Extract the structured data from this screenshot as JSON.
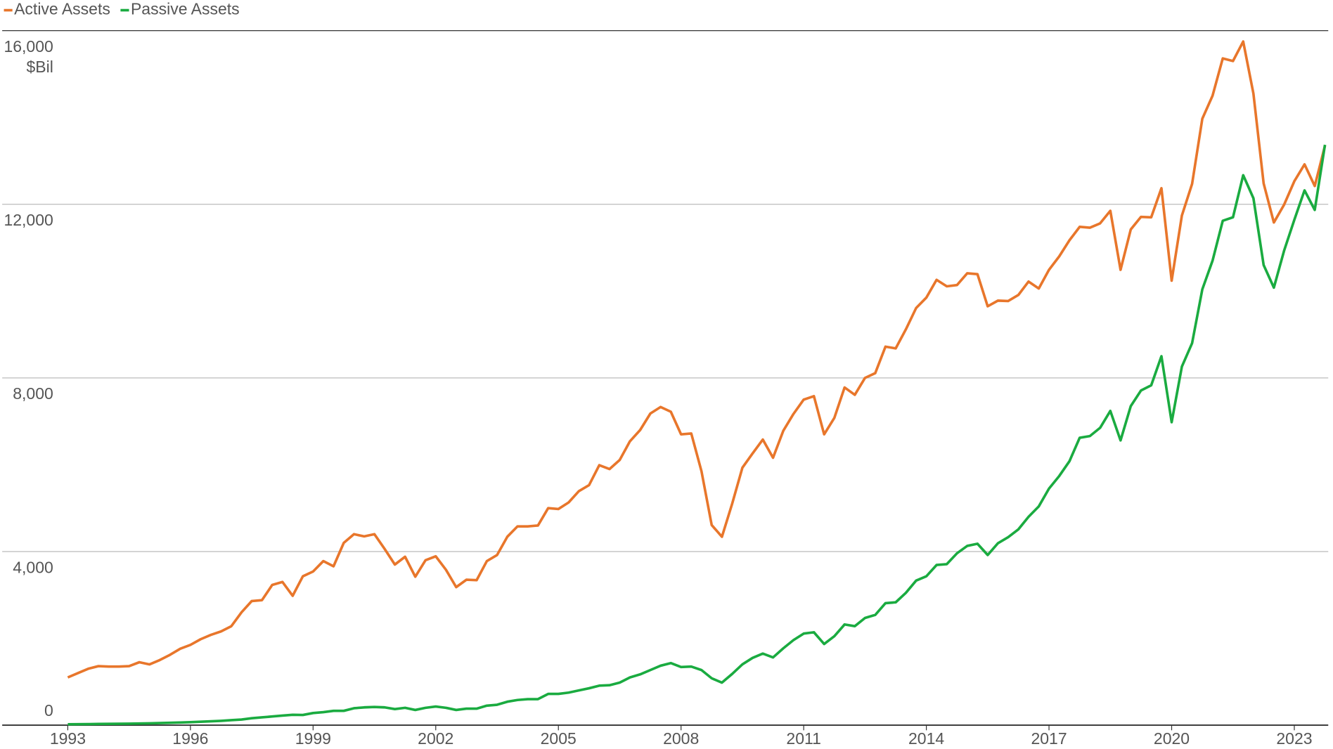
{
  "chart_data": {
    "type": "line",
    "y_unit": "$Bil",
    "x": [
      1993,
      1993.25,
      1993.5,
      1993.75,
      1994,
      1994.25,
      1994.5,
      1994.75,
      1995,
      1995.25,
      1995.5,
      1995.75,
      1996,
      1996.25,
      1996.5,
      1996.75,
      1997,
      1997.25,
      1997.5,
      1997.75,
      1998,
      1998.25,
      1998.5,
      1998.75,
      1999,
      1999.25,
      1999.5,
      1999.75,
      2000,
      2000.25,
      2000.5,
      2000.75,
      2001,
      2001.25,
      2001.5,
      2001.75,
      2002,
      2002.25,
      2002.5,
      2002.75,
      2003,
      2003.25,
      2003.5,
      2003.75,
      2004,
      2004.25,
      2004.5,
      2004.75,
      2005,
      2005.25,
      2005.5,
      2005.75,
      2006,
      2006.25,
      2006.5,
      2006.75,
      2007,
      2007.25,
      2007.5,
      2007.75,
      2008,
      2008.25,
      2008.5,
      2008.75,
      2009,
      2009.25,
      2009.5,
      2009.75,
      2010,
      2010.25,
      2010.5,
      2010.75,
      2011,
      2011.25,
      2011.5,
      2011.75,
      2012,
      2012.25,
      2012.5,
      2012.75,
      2013,
      2013.25,
      2013.5,
      2013.75,
      2014,
      2014.25,
      2014.5,
      2014.75,
      2015,
      2015.25,
      2015.5,
      2015.75,
      2016,
      2016.25,
      2016.5,
      2016.75,
      2017,
      2017.25,
      2017.5,
      2017.75,
      2018,
      2018.25,
      2018.5,
      2018.75,
      2019,
      2019.25,
      2019.5,
      2019.75,
      2020,
      2020.25,
      2020.5,
      2020.75,
      2021,
      2021.25,
      2021.5,
      2021.75,
      2022,
      2022.25,
      2022.5,
      2022.75,
      2023,
      2023.25,
      2023.5,
      2023.75
    ],
    "series": [
      {
        "name": "Active Assets",
        "color": "#e8762b",
        "values": [
          1100,
          1200,
          1300,
          1360,
          1350,
          1350,
          1360,
          1450,
          1400,
          1500,
          1620,
          1760,
          1850,
          1980,
          2080,
          2160,
          2280,
          2600,
          2860,
          2880,
          3230,
          3300,
          2980,
          3430,
          3540,
          3780,
          3660,
          4200,
          4400,
          4350,
          4400,
          4060,
          3700,
          3880,
          3420,
          3800,
          3890,
          3580,
          3180,
          3350,
          3340,
          3780,
          3920,
          4340,
          4580,
          4580,
          4600,
          5000,
          4980,
          5130,
          5390,
          5530,
          5990,
          5900,
          6110,
          6540,
          6800,
          7180,
          7330,
          7220,
          6700,
          6720,
          5850,
          4610,
          4340,
          5100,
          5930,
          6260,
          6580,
          6160,
          6780,
          7170,
          7500,
          7580,
          6700,
          7080,
          7780,
          7610,
          8000,
          8110,
          8720,
          8680,
          9120,
          9610,
          9850,
          10260,
          10110,
          10140,
          10410,
          10390,
          9650,
          9780,
          9770,
          9910,
          10220,
          10060,
          10490,
          10800,
          11170,
          11480,
          11460,
          11560,
          11850,
          10490,
          11420,
          11710,
          11700,
          12370,
          10240,
          11740,
          12470,
          13970,
          14500,
          15360,
          15300,
          15750,
          14550,
          12480,
          11580,
          11990,
          12530,
          12920,
          12420,
          13350
        ]
      },
      {
        "name": "Passive Assets",
        "color": "#1aab40",
        "values": [
          20,
          22,
          25,
          28,
          30,
          32,
          35,
          38,
          42,
          48,
          55,
          62,
          70,
          80,
          90,
          100,
          115,
          130,
          160,
          180,
          200,
          220,
          240,
          235,
          280,
          300,
          330,
          330,
          390,
          410,
          420,
          410,
          370,
          400,
          350,
          400,
          430,
          400,
          350,
          380,
          380,
          450,
          470,
          540,
          580,
          600,
          600,
          720,
          720,
          750,
          800,
          850,
          910,
          920,
          980,
          1100,
          1170,
          1270,
          1370,
          1430,
          1340,
          1350,
          1270,
          1080,
          980,
          1180,
          1400,
          1550,
          1650,
          1560,
          1770,
          1960,
          2110,
          2140,
          1870,
          2050,
          2320,
          2280,
          2470,
          2540,
          2810,
          2830,
          3050,
          3330,
          3430,
          3690,
          3710,
          3960,
          4130,
          4180,
          3920,
          4190,
          4330,
          4510,
          4800,
          5040,
          5450,
          5740,
          6080,
          6620,
          6660,
          6850,
          7240,
          6560,
          7350,
          7710,
          7830,
          8500,
          6980,
          8260,
          8800,
          10040,
          10700,
          11620,
          11700,
          12670,
          12140,
          10600,
          10080,
          10930,
          11640,
          12320,
          11870,
          13370
        ]
      }
    ],
    "xlim": [
      1993,
      2023.83
    ],
    "xticks": [
      1993,
      1996,
      1999,
      2002,
      2005,
      2008,
      2011,
      2014,
      2017,
      2020,
      2023
    ],
    "ylim": [
      0,
      16000
    ],
    "yticks": [
      0,
      {
        "value": 4000,
        "label": "4,000"
      },
      {
        "value": 8000,
        "label": "8,000"
      },
      {
        "value": 12000,
        "label": "12,000"
      },
      {
        "value": 16000,
        "label": "16,000"
      }
    ],
    "grid": true,
    "legend": "top-left"
  }
}
